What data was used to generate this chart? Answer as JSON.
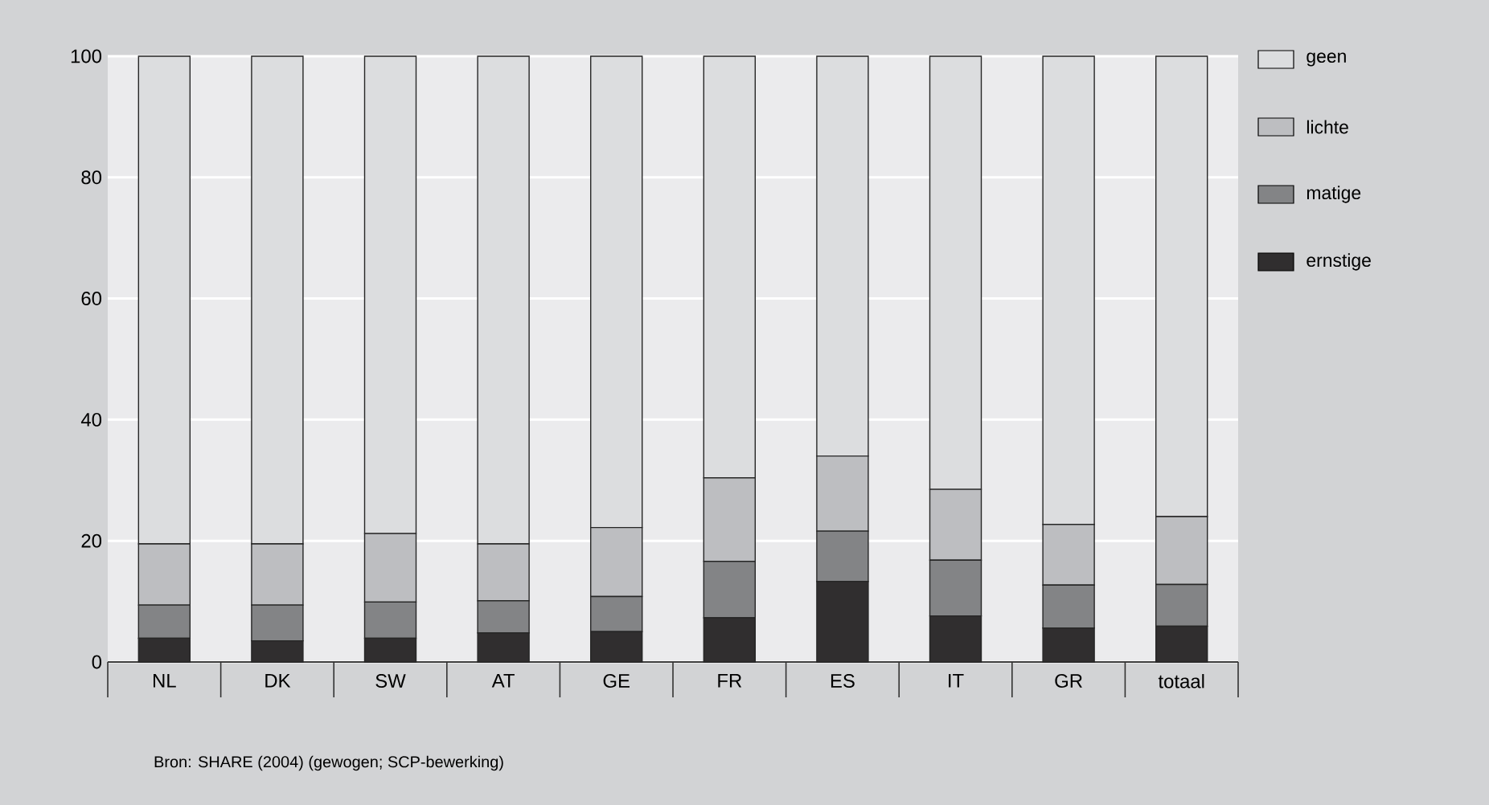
{
  "chart_data": {
    "type": "bar",
    "stacked": true,
    "categories": [
      "NL",
      "DK",
      "SW",
      "AT",
      "GE",
      "FR",
      "ES",
      "IT",
      "GR",
      "totaal"
    ],
    "series": [
      {
        "name": "ernstige",
        "color": "#302e2f",
        "values": [
          3.9,
          3.5,
          3.9,
          4.8,
          5.0,
          7.3,
          13.3,
          7.6,
          5.6,
          5.9
        ]
      },
      {
        "name": "matige",
        "color": "#838486",
        "values": [
          5.5,
          5.9,
          6.0,
          5.3,
          5.8,
          9.3,
          8.3,
          9.2,
          7.1,
          6.9
        ]
      },
      {
        "name": "lichte",
        "color": "#bdbec1",
        "values": [
          10.1,
          10.1,
          11.3,
          9.4,
          11.4,
          13.8,
          12.4,
          11.7,
          10.0,
          11.2
        ]
      },
      {
        "name": "geen",
        "color": "#dcdddf",
        "values": [
          80.5,
          80.5,
          78.8,
          80.5,
          77.8,
          69.6,
          66.0,
          71.5,
          77.3,
          76.0
        ]
      }
    ],
    "ylim": [
      0,
      100
    ],
    "yticks": [
      0,
      20,
      40,
      60,
      80,
      100
    ],
    "grid": "y",
    "legend": "right",
    "annotations": [
      "Bron: SHARE (2004) (gewogen; SCP-bewerking)"
    ]
  }
}
